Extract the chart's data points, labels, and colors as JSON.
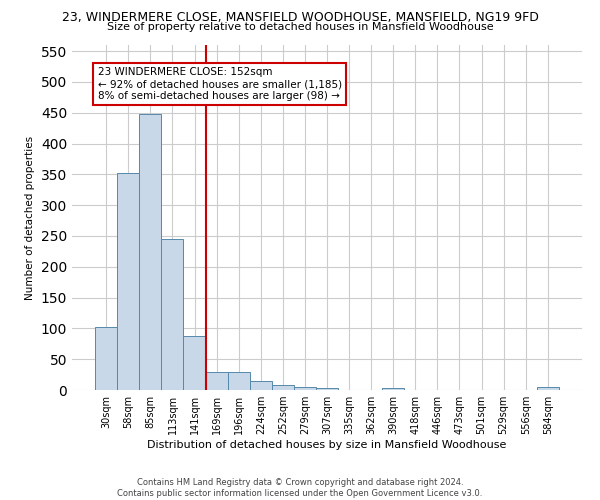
{
  "title": "23, WINDERMERE CLOSE, MANSFIELD WOODHOUSE, MANSFIELD, NG19 9FD",
  "subtitle": "Size of property relative to detached houses in Mansfield Woodhouse",
  "xlabel": "Distribution of detached houses by size in Mansfield Woodhouse",
  "ylabel": "Number of detached properties",
  "footnote": "Contains HM Land Registry data © Crown copyright and database right 2024.\nContains public sector information licensed under the Open Government Licence v3.0.",
  "bar_labels": [
    "30sqm",
    "58sqm",
    "85sqm",
    "113sqm",
    "141sqm",
    "169sqm",
    "196sqm",
    "224sqm",
    "252sqm",
    "279sqm",
    "307sqm",
    "335sqm",
    "362sqm",
    "390sqm",
    "418sqm",
    "446sqm",
    "473sqm",
    "501sqm",
    "529sqm",
    "556sqm",
    "584sqm"
  ],
  "bar_values": [
    102,
    352,
    448,
    245,
    87,
    30,
    30,
    14,
    8,
    5,
    4,
    0,
    0,
    4,
    0,
    0,
    0,
    0,
    0,
    0,
    5
  ],
  "bar_color": "#c8d8e8",
  "bar_edge_color": "#5588aa",
  "vline_x": 4.5,
  "vline_color": "#cc0000",
  "annotation_text": "23 WINDERMERE CLOSE: 152sqm\n← 92% of detached houses are smaller (1,185)\n8% of semi-detached houses are larger (98) →",
  "annotation_box_color": "#ffffff",
  "annotation_box_edge": "#cc0000",
  "ylim": [
    0,
    560
  ],
  "yticks": [
    0,
    50,
    100,
    150,
    200,
    250,
    300,
    350,
    400,
    450,
    500,
    550
  ],
  "background_color": "#ffffff",
  "grid_color": "#cccccc"
}
